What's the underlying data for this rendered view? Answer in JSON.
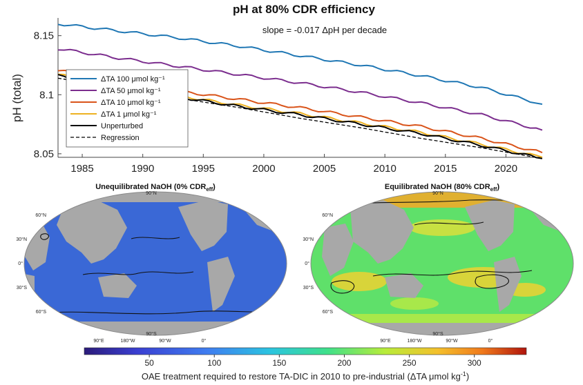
{
  "chart_data": [
    {
      "type": "line",
      "title": "pH at 80% CDR efficiency",
      "annotation": "slope = -0.017 ΔpH per decade",
      "ylabel": "pH (total)",
      "xlabel": "",
      "xlim": [
        1983,
        2023
      ],
      "ylim": [
        8.047,
        8.165
      ],
      "xticks": [
        "1985",
        "1990",
        "1995",
        "2000",
        "2005",
        "2010",
        "2015",
        "2020"
      ],
      "yticks": [
        "8.05",
        "8.1",
        "8.15"
      ],
      "legend_position": "left",
      "x": [
        1983,
        1988,
        1993,
        1998,
        2003,
        2008,
        2013,
        2018,
        2023
      ],
      "series": [
        {
          "name": "ΔTA 100 μmol kg⁻¹",
          "color": "#1f77b4",
          "values": [
            8.16,
            8.154,
            8.148,
            8.141,
            8.133,
            8.125,
            8.116,
            8.106,
            8.092
          ]
        },
        {
          "name": "ΔTA 50 μmol kg⁻¹",
          "color": "#7b2d8e",
          "values": [
            8.139,
            8.131,
            8.124,
            8.117,
            8.11,
            8.102,
            8.093,
            8.083,
            8.07
          ]
        },
        {
          "name": "ΔTA 10 μmol kg⁻¹",
          "color": "#d95319",
          "values": [
            8.121,
            8.111,
            8.103,
            8.096,
            8.089,
            8.081,
            8.073,
            8.063,
            8.051
          ]
        },
        {
          "name": "ΔTA 1 μmol kg⁻¹",
          "color": "#edb120",
          "values": [
            8.117,
            8.107,
            8.099,
            8.091,
            8.084,
            8.076,
            8.068,
            8.058,
            8.047
          ]
        },
        {
          "name": "Unperturbed",
          "color": "#000000",
          "dash": false,
          "values": [
            8.116,
            8.106,
            8.098,
            8.09,
            8.083,
            8.075,
            8.067,
            8.057,
            8.046
          ]
        },
        {
          "name": "Regression",
          "color": "#000000",
          "dash": true,
          "values": [
            8.114,
            8.106,
            8.097,
            8.089,
            8.08,
            8.072,
            8.063,
            8.055,
            8.046
          ]
        }
      ]
    },
    {
      "type": "heatmap",
      "title": "Unequilibrated NaOH (0% CDR",
      "title_sub": "eff",
      "title_end": ")",
      "dominant_value": 90
    },
    {
      "type": "heatmap",
      "title": "Equilibrated NaOH (80% CDR",
      "title_sub": "eff",
      "title_end": ")",
      "dominant_value": 180
    }
  ],
  "map_labels": {
    "lat_left": [
      "90°N",
      "60°N",
      "30°N",
      "0°",
      "30°S",
      "60°S",
      "90°S"
    ],
    "lon_bottom": [
      "90°E",
      "180°W",
      "90°W",
      "0°"
    ]
  },
  "colorbar": {
    "range": [
      0,
      340
    ],
    "ticks": [
      "50",
      "100",
      "150",
      "200",
      "250",
      "300"
    ],
    "label": "OAE treatment required to restore TA-DIC in 2010 to pre-industrial (ΔTA μmol kg",
    "label_sup": "-1",
    "label_end": ")"
  }
}
